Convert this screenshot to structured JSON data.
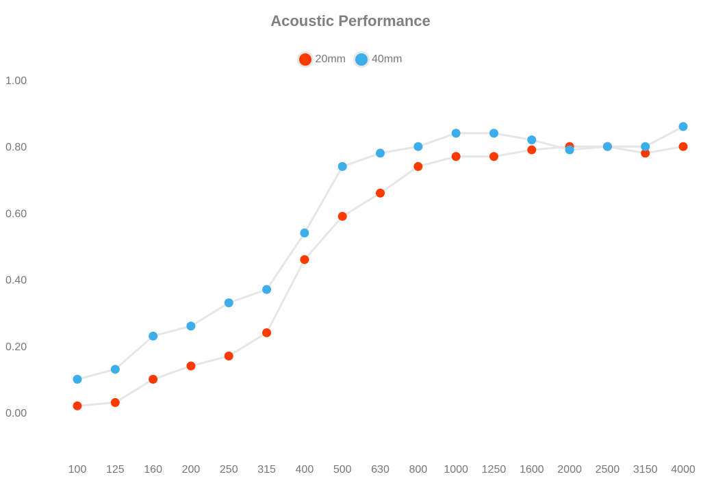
{
  "chart_data": {
    "type": "line",
    "title": "Acoustic Performance",
    "xlabel": "",
    "ylabel": "",
    "categories": [
      "100",
      "125",
      "160",
      "200",
      "250",
      "315",
      "400",
      "500",
      "630",
      "800",
      "1000",
      "1250",
      "1600",
      "2000",
      "2500",
      "3150",
      "4000"
    ],
    "yticks": [
      "1.00",
      "0.80",
      "0.60",
      "0.40",
      "0.20",
      "0.00"
    ],
    "ylim": [
      0,
      1
    ],
    "grid": false,
    "legend": "top-center",
    "series": [
      {
        "name": "20mm",
        "color": "#ff3a00",
        "values": [
          0.02,
          0.03,
          0.1,
          0.14,
          0.17,
          0.24,
          0.46,
          0.59,
          0.66,
          0.74,
          0.77,
          0.77,
          0.79,
          0.8,
          0.8,
          0.78,
          0.8
        ]
      },
      {
        "name": "40mm",
        "color": "#3daee9",
        "values": [
          0.1,
          0.13,
          0.23,
          0.26,
          0.33,
          0.37,
          0.54,
          0.74,
          0.78,
          0.8,
          0.84,
          0.84,
          0.82,
          0.79,
          0.8,
          0.8,
          0.86
        ]
      }
    ],
    "line_color": "#e6e6e6"
  }
}
